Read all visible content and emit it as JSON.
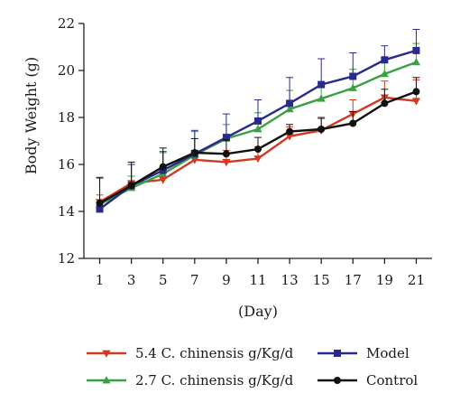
{
  "chart_data": {
    "type": "line",
    "xlabel": "(Day)",
    "ylabel": "Body Weight (g)",
    "x": [
      1,
      3,
      5,
      7,
      9,
      11,
      13,
      15,
      17,
      19,
      21
    ],
    "xlim": [
      0,
      22
    ],
    "ylim": [
      12,
      22
    ],
    "yticks": [
      12,
      14,
      16,
      18,
      20,
      22
    ],
    "error_bars": "upper, one-sided",
    "legend_placement": "bottom",
    "series": [
      {
        "name": "5.4 C. chinensis g/Kg/d",
        "color": "#d03a22",
        "marker": "triangle-down",
        "values": [
          14.4,
          15.2,
          15.35,
          16.2,
          16.1,
          16.25,
          17.2,
          17.45,
          18.15,
          18.85,
          18.7
        ],
        "errors": [
          0.3,
          0.8,
          0.5,
          0.4,
          0.5,
          0.5,
          0.4,
          0.5,
          0.6,
          0.7,
          0.9
        ]
      },
      {
        "name": "2.7 C. chinensis g/Kg/d",
        "color": "#3aa043",
        "marker": "triangle-up",
        "values": [
          14.3,
          15.0,
          15.6,
          16.4,
          17.1,
          17.5,
          18.35,
          18.8,
          19.25,
          19.85,
          20.35
        ],
        "errors": [
          1.1,
          0.5,
          0.9,
          1.0,
          0.6,
          0.7,
          0.8,
          0.7,
          0.8,
          0.7,
          0.8
        ]
      },
      {
        "name": "Model",
        "color": "#2a2a8c",
        "marker": "square",
        "values": [
          14.1,
          15.1,
          15.75,
          16.45,
          17.15,
          17.85,
          18.6,
          19.4,
          19.75,
          20.45,
          20.85
        ],
        "errors": [
          0.3,
          0.9,
          0.8,
          1.0,
          1.0,
          0.9,
          1.1,
          1.1,
          1.0,
          0.6,
          0.9
        ]
      },
      {
        "name": "Control",
        "color": "#111111",
        "marker": "circle",
        "values": [
          14.35,
          15.1,
          15.9,
          16.5,
          16.45,
          16.65,
          17.4,
          17.5,
          17.75,
          18.6,
          19.1
        ],
        "errors": [
          1.1,
          1.0,
          0.8,
          0.6,
          0.6,
          0.5,
          0.3,
          0.5,
          0.5,
          0.6,
          0.6
        ]
      }
    ]
  }
}
